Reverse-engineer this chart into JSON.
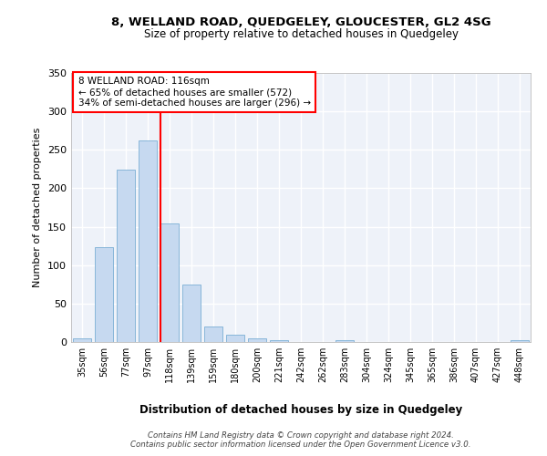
{
  "title1": "8, WELLAND ROAD, QUEDGELEY, GLOUCESTER, GL2 4SG",
  "title2": "Size of property relative to detached houses in Quedgeley",
  "xlabel": "Distribution of detached houses by size in Quedgeley",
  "ylabel": "Number of detached properties",
  "categories": [
    "35sqm",
    "56sqm",
    "77sqm",
    "97sqm",
    "118sqm",
    "139sqm",
    "159sqm",
    "180sqm",
    "200sqm",
    "221sqm",
    "242sqm",
    "262sqm",
    "283sqm",
    "304sqm",
    "324sqm",
    "345sqm",
    "365sqm",
    "386sqm",
    "407sqm",
    "427sqm",
    "448sqm"
  ],
  "values": [
    5,
    123,
    224,
    262,
    154,
    75,
    20,
    10,
    5,
    2,
    0,
    0,
    2,
    0,
    0,
    0,
    0,
    0,
    0,
    0,
    2
  ],
  "bar_color": "#c6d9f0",
  "bar_edge_color": "#7bafd4",
  "vline_color": "red",
  "annotation_text": "8 WELLAND ROAD: 116sqm\n← 65% of detached houses are smaller (572)\n34% of semi-detached houses are larger (296) →",
  "annotation_box_color": "white",
  "annotation_box_edge": "red",
  "footer_line1": "Contains HM Land Registry data © Crown copyright and database right 2024.",
  "footer_line2": "Contains public sector information licensed under the Open Government Licence v3.0.",
  "ylim": [
    0,
    350
  ],
  "yticks": [
    0,
    50,
    100,
    150,
    200,
    250,
    300,
    350
  ],
  "background_color": "#eef2f9",
  "grid_color": "white"
}
